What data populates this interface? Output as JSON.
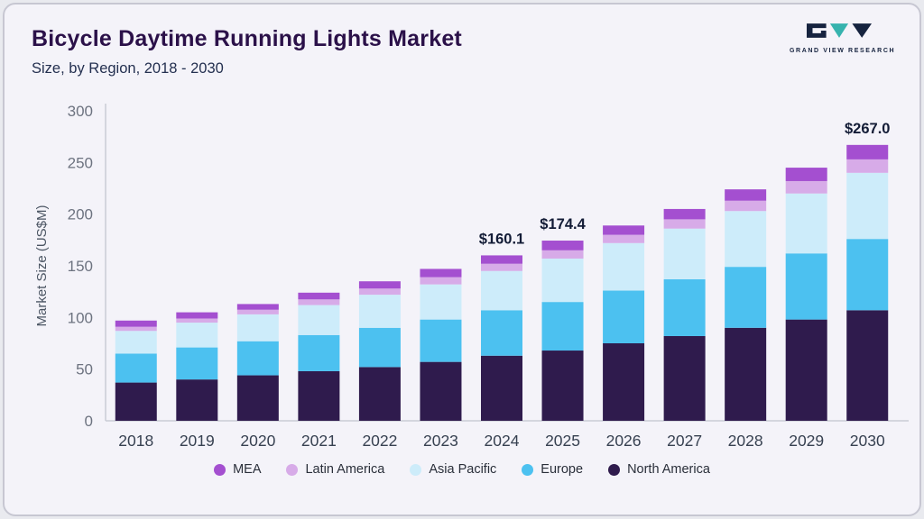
{
  "header": {
    "title": "Bicycle Daytime Running Lights Market",
    "subtitle": "Size, by Region, 2018 - 2030"
  },
  "logo": {
    "name": "GRAND VIEW RESEARCH"
  },
  "chart_data": {
    "type": "bar",
    "stacked": true,
    "title": "Bicycle Daytime Running Lights Market Size, by Region, 2018 - 2030",
    "ylabel": "Market Size (US$M)",
    "ylim": [
      0,
      300
    ],
    "yticks": [
      0,
      50,
      100,
      150,
      200,
      250,
      300
    ],
    "grid": false,
    "legend_position": "bottom",
    "categories": [
      "2018",
      "2019",
      "2020",
      "2021",
      "2022",
      "2023",
      "2024",
      "2025",
      "2026",
      "2027",
      "2028",
      "2029",
      "2030"
    ],
    "series": [
      {
        "name": "North America",
        "color": "#2f1b4d",
        "values": [
          37,
          40,
          44,
          48,
          52,
          57,
          63,
          68,
          75,
          82,
          90,
          98,
          107
        ]
      },
      {
        "name": "Europe",
        "color": "#4cc1f0",
        "values": [
          28,
          31,
          33,
          35,
          38,
          41,
          44,
          47,
          51,
          55,
          59,
          64,
          69
        ]
      },
      {
        "name": "Asia Pacific",
        "color": "#cdecfa",
        "values": [
          22,
          24,
          26,
          29,
          32,
          34,
          38,
          42,
          46,
          49,
          54,
          58,
          64
        ]
      },
      {
        "name": "Latin America",
        "color": "#d7abe8",
        "values": [
          4,
          4,
          4.5,
          5.5,
          6,
          7,
          7,
          8,
          8,
          9,
          10,
          12,
          13
        ]
      },
      {
        "name": "MEA",
        "color": "#a44fd0",
        "values": [
          6,
          6,
          5.5,
          6.5,
          7,
          8,
          8.1,
          9.4,
          9,
          10,
          11,
          13,
          14
        ]
      }
    ],
    "legend_order": [
      "MEA",
      "Latin America",
      "Asia Pacific",
      "Europe",
      "North America"
    ],
    "annotations": [
      {
        "category": "2024",
        "label": "$160.1"
      },
      {
        "category": "2025",
        "label": "$174.4"
      },
      {
        "category": "2030",
        "label": "$267.0"
      }
    ],
    "totals": [
      97,
      105,
      113,
      124,
      135,
      147,
      160.1,
      174.4,
      189,
      205,
      224,
      245,
      267
    ]
  }
}
